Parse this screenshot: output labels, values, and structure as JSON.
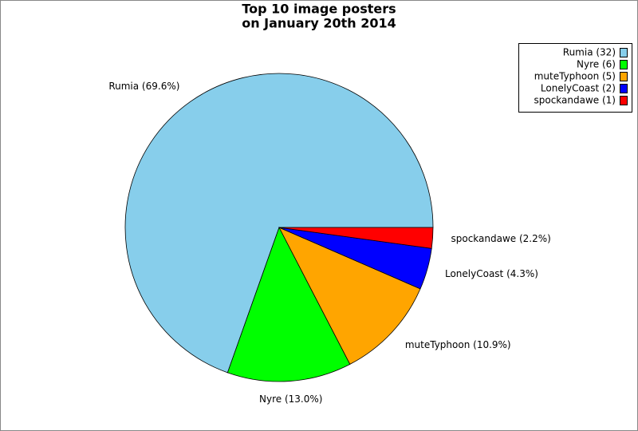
{
  "chart_data": {
    "type": "pie",
    "title": [
      "Top 10 image posters",
      "on January 20th 2014"
    ],
    "categories": [
      "Rumia (32)",
      "Nyre (6)",
      "muteTyphoon (5)",
      "LonelyCoast (2)",
      "spockandawe (1)"
    ],
    "values": [
      32,
      6,
      5,
      2,
      1
    ],
    "slice_labels": [
      "Rumia (69.6%)",
      "Nyre (13.0%)",
      "muteTyphoon (10.9%)",
      "LonelyCoast (4.3%)",
      "spockandawe (2.2%)"
    ],
    "colors": [
      "#87ceeb",
      "#00ff00",
      "#ffa500",
      "#0000ff",
      "#ff0000"
    ],
    "legend": "upper right"
  }
}
